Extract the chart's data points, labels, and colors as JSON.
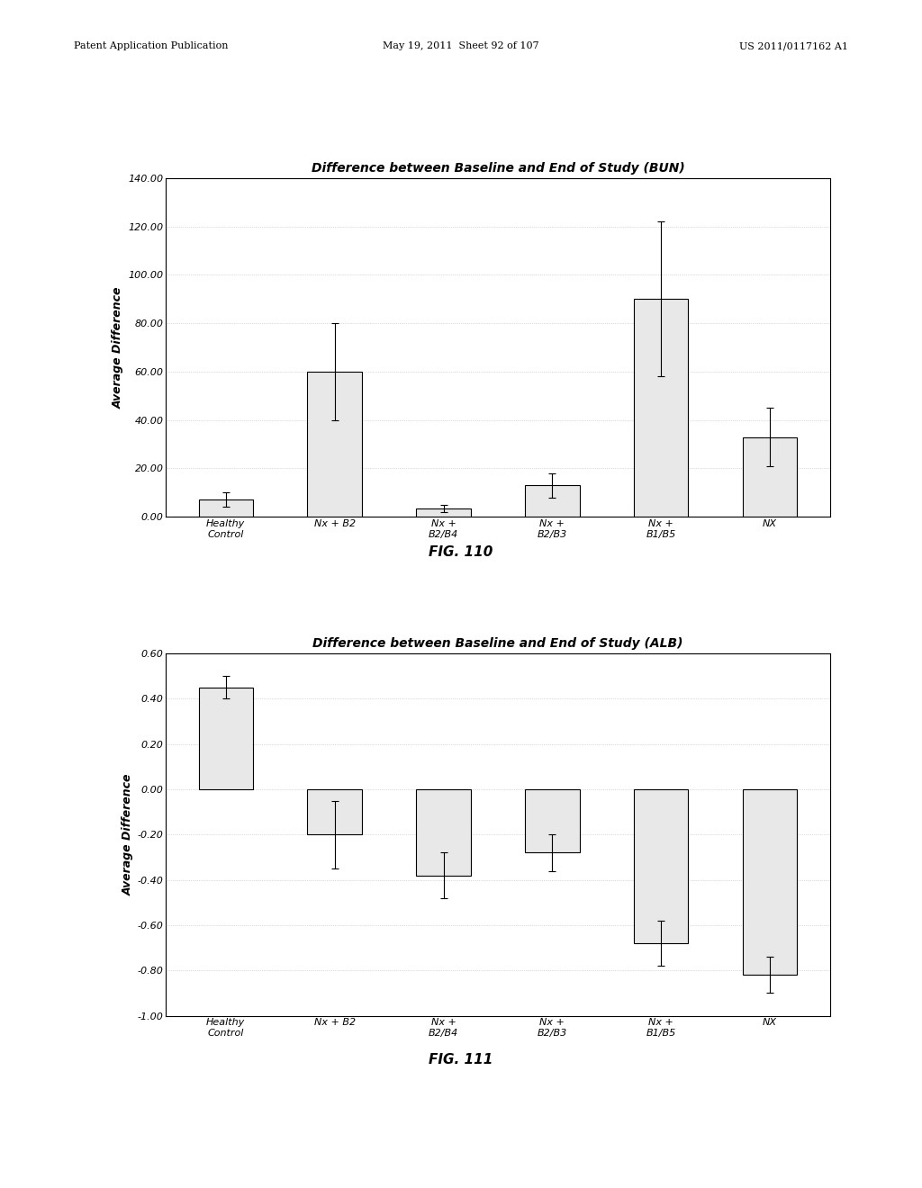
{
  "chart1": {
    "title": "Difference between Baseline and End of Study (BUN)",
    "ylabel": "Average Difference",
    "categories": [
      "Healthy\nControl",
      "Nx + B2",
      "Nx +\nB2/B4",
      "Nx +\nB2/B3",
      "Nx +\nB1/B5",
      "NX"
    ],
    "values": [
      7.0,
      60.0,
      3.5,
      13.0,
      90.0,
      33.0
    ],
    "errors": [
      3.0,
      20.0,
      1.5,
      5.0,
      32.0,
      12.0
    ],
    "ylim": [
      0,
      140
    ],
    "yticks": [
      0.0,
      20.0,
      40.0,
      60.0,
      80.0,
      100.0,
      120.0,
      140.0
    ],
    "fig_label": "FIG. 110"
  },
  "chart2": {
    "title": "Difference between Baseline and End of Study (ALB)",
    "ylabel": "Average Difference",
    "categories": [
      "Healthy\nControl",
      "Nx + B2",
      "Nx +\nB2/B4",
      "Nx +\nB2/B3",
      "Nx +\nB1/B5",
      "NX"
    ],
    "values": [
      0.45,
      -0.2,
      -0.38,
      -0.28,
      -0.68,
      -0.82
    ],
    "errors": [
      0.05,
      0.15,
      0.1,
      0.08,
      0.1,
      0.08
    ],
    "ylim": [
      -1.0,
      0.6
    ],
    "yticks": [
      -1.0,
      -0.8,
      -0.6,
      -0.4,
      -0.2,
      0.0,
      0.2,
      0.4,
      0.6
    ],
    "fig_label": "FIG. 111"
  },
  "bar_color": "#e8e8e8",
  "bar_edgecolor": "#000000",
  "background_color": "#ffffff",
  "grid_color": "#bbbbbb",
  "title_fontsize": 10,
  "axis_fontsize": 9,
  "tick_fontsize": 8,
  "fig_label_fontsize": 11,
  "header_text": "Patent Application Publication    May 19, 2011  Sheet 92 of 107    US 2011/0117162 A1",
  "header_left": "Patent Application Publication",
  "header_mid": "May 19, 2011  Sheet 92 of 107",
  "header_right": "US 2011/0117162 A1"
}
